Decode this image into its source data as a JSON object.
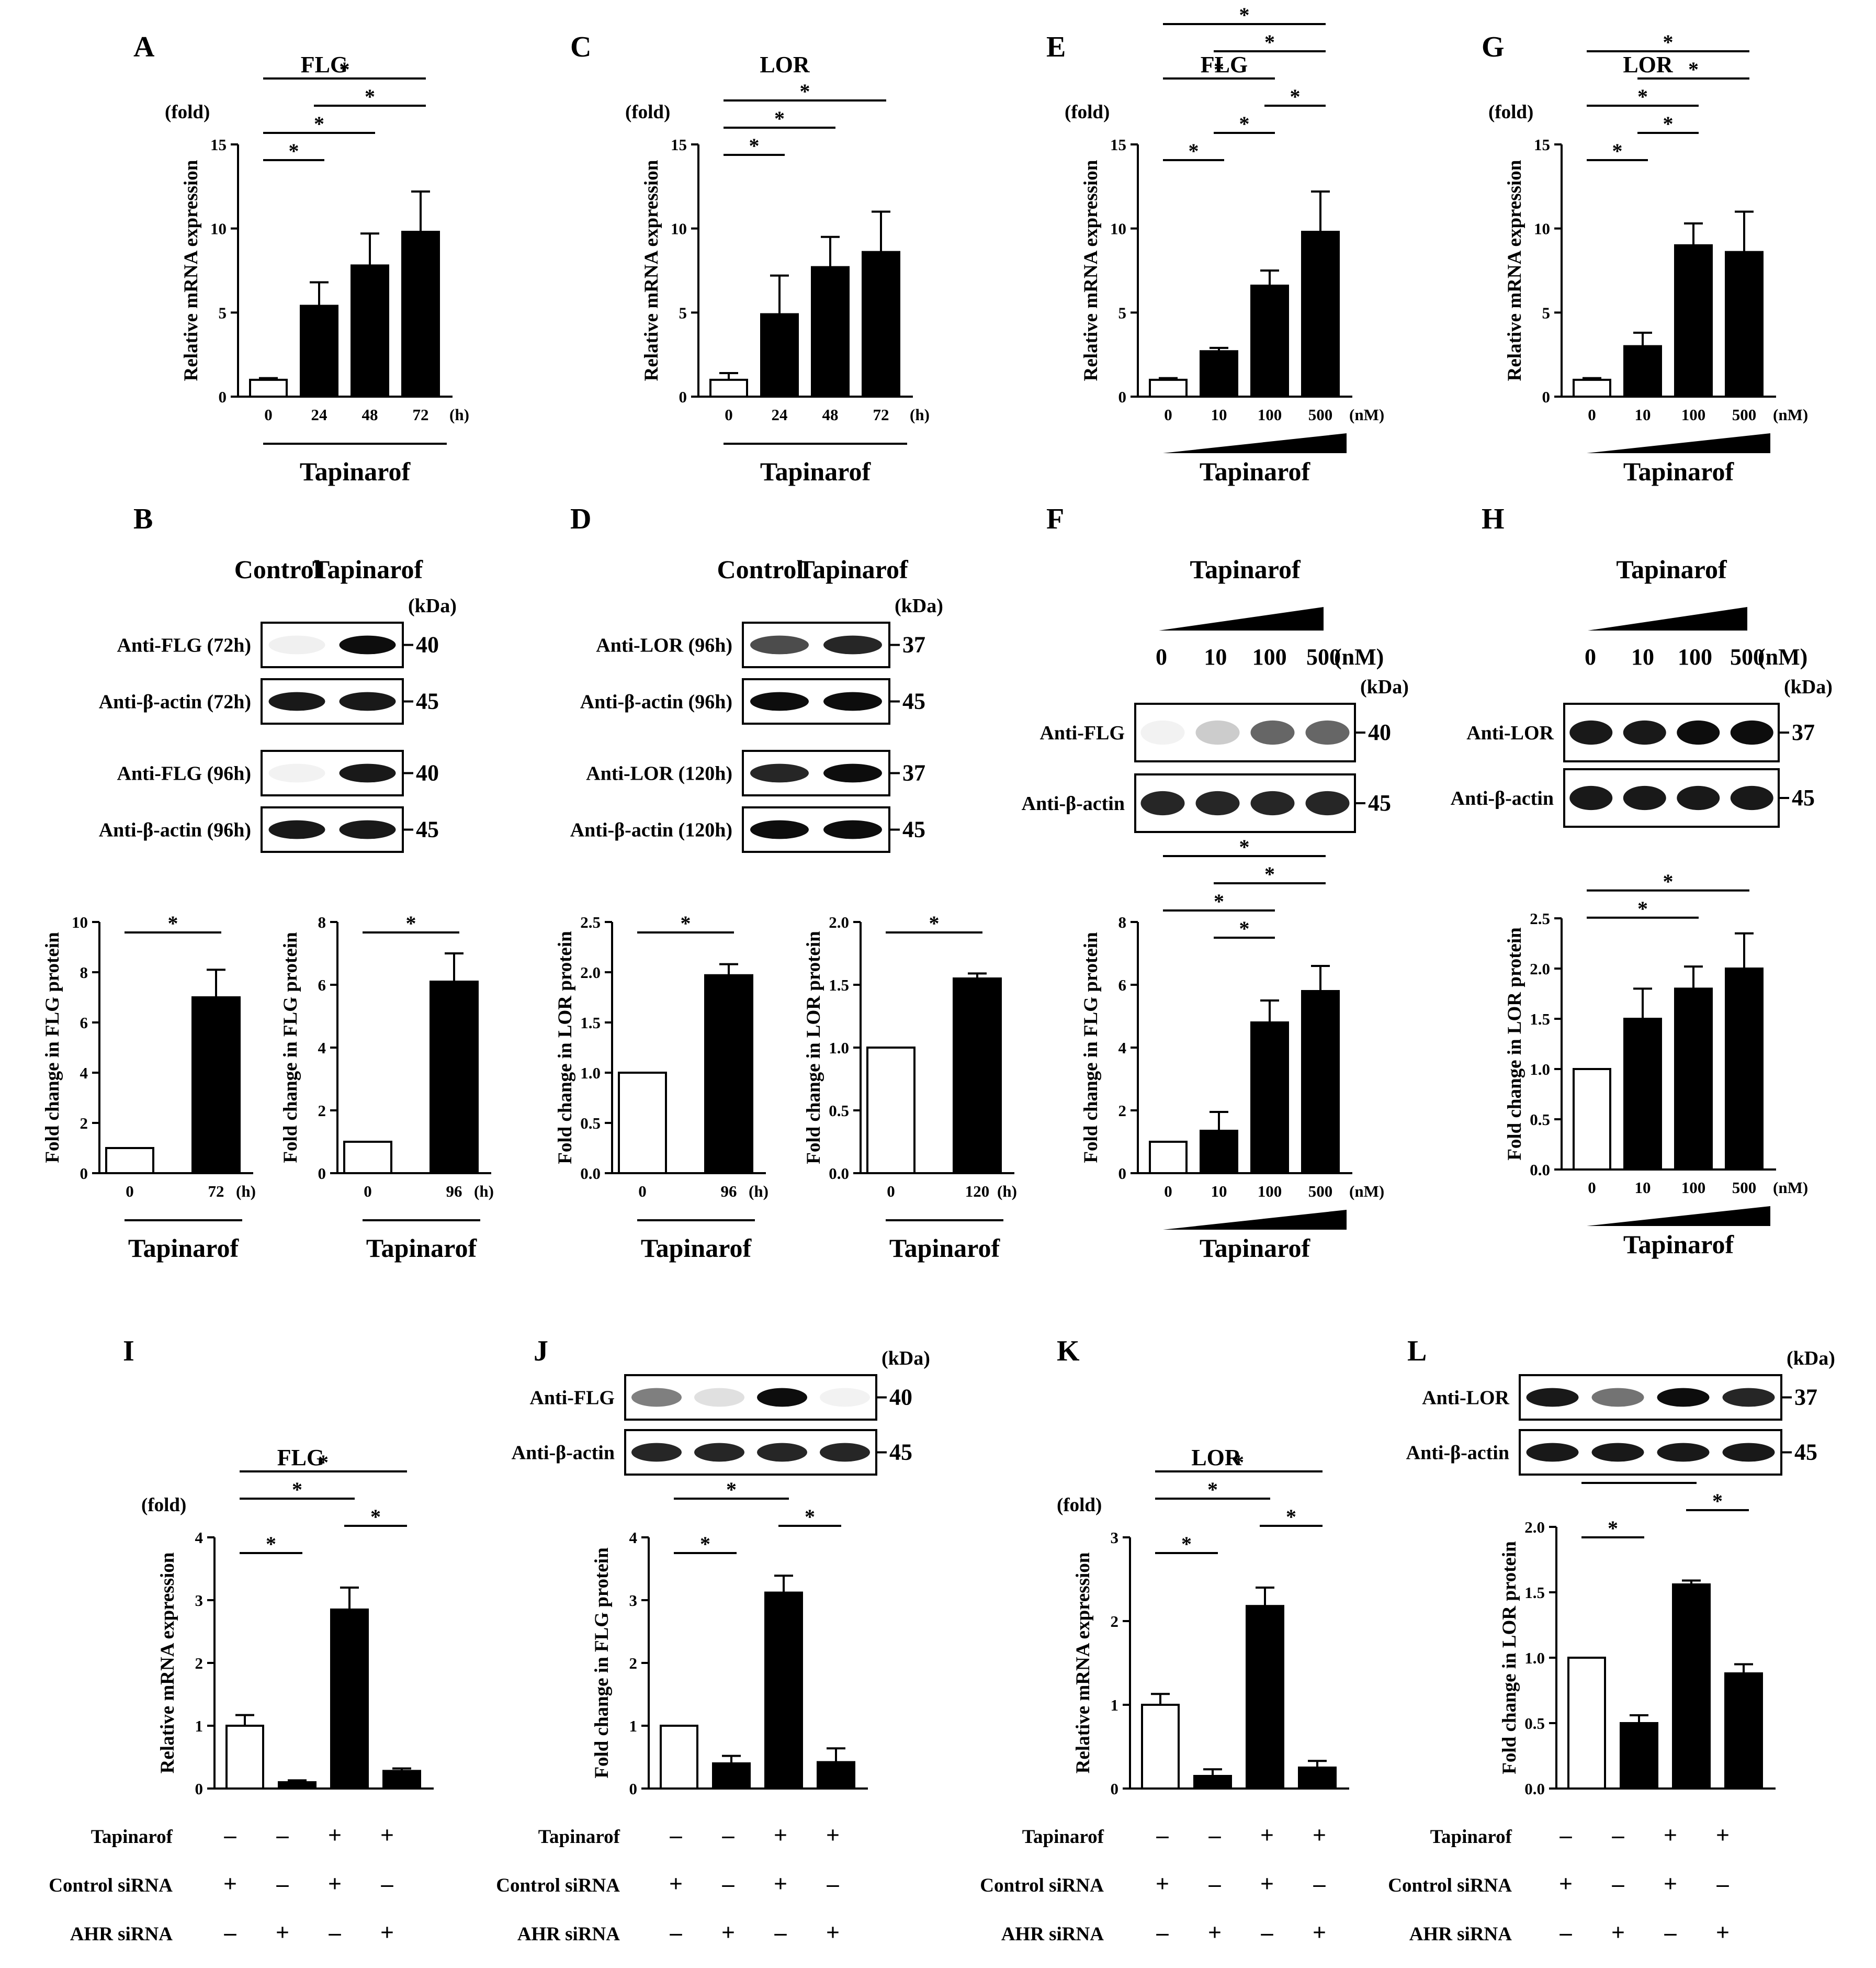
{
  "panels": [
    {
      "id": "A",
      "letter": "A",
      "title": "FLG",
      "ylabel": "Relative mRNA expression",
      "unit": "(fold)",
      "yticks": [
        "0",
        "5",
        "10",
        "15"
      ],
      "ymax": 15,
      "categories": [
        "0",
        "24",
        "48",
        "72"
      ],
      "xunit": "(h)",
      "xlabel": "Tapinarof",
      "dose_wedge": false,
      "values": [
        1.0,
        5.4,
        7.8,
        9.8
      ],
      "errors": [
        0.1,
        1.4,
        1.9,
        2.4
      ],
      "fills": [
        "open",
        "solid",
        "solid",
        "solid"
      ],
      "sig": [
        [
          0,
          1
        ],
        [
          0,
          2
        ],
        [
          0,
          3
        ],
        [
          1,
          3
        ]
      ]
    },
    {
      "id": "C",
      "letter": "C",
      "title": "LOR",
      "ylabel": "Relative mRNA expression",
      "unit": "(fold)",
      "yticks": [
        "0",
        "5",
        "10",
        "15"
      ],
      "ymax": 15,
      "categories": [
        "0",
        "24",
        "48",
        "72"
      ],
      "xunit": "(h)",
      "xlabel": "Tapinarof",
      "dose_wedge": false,
      "values": [
        1.0,
        4.9,
        7.7,
        8.6
      ],
      "errors": [
        0.4,
        2.3,
        1.8,
        2.4
      ],
      "fills": [
        "open",
        "solid",
        "solid",
        "solid"
      ],
      "sig": [
        [
          0,
          1
        ],
        [
          0,
          2
        ],
        [
          0,
          3
        ]
      ]
    },
    {
      "id": "E",
      "letter": "E",
      "title": "FLG",
      "ylabel": "Relative mRNA expression",
      "unit": "(fold)",
      "yticks": [
        "0",
        "5",
        "10",
        "15"
      ],
      "ymax": 15,
      "categories": [
        "0",
        "10",
        "100",
        "500"
      ],
      "xunit": "(nM)",
      "xlabel": "Tapinarof",
      "dose_wedge": true,
      "values": [
        1.0,
        2.7,
        6.6,
        9.8
      ],
      "errors": [
        0.1,
        0.2,
        0.9,
        2.4
      ],
      "fills": [
        "open",
        "solid",
        "solid",
        "solid"
      ],
      "sig": [
        [
          0,
          1
        ],
        [
          0,
          2
        ],
        [
          0,
          3
        ],
        [
          1,
          2
        ],
        [
          1,
          3
        ],
        [
          2,
          3
        ]
      ]
    },
    {
      "id": "G",
      "letter": "G",
      "title": "LOR",
      "ylabel": "Relative mRNA expression",
      "unit": "(fold)",
      "yticks": [
        "0",
        "5",
        "10",
        "15"
      ],
      "ymax": 15,
      "categories": [
        "0",
        "10",
        "100",
        "500"
      ],
      "xunit": "(nM)",
      "xlabel": "Tapinarof",
      "dose_wedge": true,
      "values": [
        1.0,
        3.0,
        9.0,
        8.6
      ],
      "errors": [
        0.1,
        0.8,
        1.3,
        2.4
      ],
      "fills": [
        "open",
        "solid",
        "solid",
        "solid"
      ],
      "sig": [
        [
          0,
          1
        ],
        [
          0,
          2
        ],
        [
          0,
          3
        ],
        [
          1,
          2
        ],
        [
          1,
          3
        ]
      ]
    },
    {
      "id": "B1",
      "letter": "",
      "title": "",
      "ylabel": "Fold change in FLG protein",
      "unit": "",
      "yticks": [
        "0",
        "2",
        "4",
        "6",
        "8",
        "10"
      ],
      "ymax": 10,
      "categories": [
        "0",
        "72"
      ],
      "xunit": "(h)",
      "xlabel": "Tapinarof",
      "dose_wedge": false,
      "values": [
        1.0,
        7.0
      ],
      "errors": [
        0,
        1.1
      ],
      "fills": [
        "open",
        "solid"
      ],
      "sig": [
        [
          0,
          1
        ]
      ]
    },
    {
      "id": "B2",
      "letter": "",
      "title": "",
      "ylabel": "Fold change in FLG protein",
      "unit": "",
      "yticks": [
        "0",
        "2",
        "4",
        "6",
        "8"
      ],
      "ymax": 8,
      "categories": [
        "0",
        "96"
      ],
      "xunit": "(h)",
      "xlabel": "Tapinarof",
      "dose_wedge": false,
      "values": [
        1.0,
        6.1
      ],
      "errors": [
        0,
        0.9
      ],
      "fills": [
        "open",
        "solid"
      ],
      "sig": [
        [
          0,
          1
        ]
      ]
    },
    {
      "id": "D1",
      "letter": "",
      "title": "",
      "ylabel": "Fold change in LOR protein",
      "unit": "",
      "yticks": [
        "0.0",
        "0.5",
        "1.0",
        "1.5",
        "2.0",
        "2.5"
      ],
      "ymax": 2.5,
      "categories": [
        "0",
        "96"
      ],
      "xunit": "(h)",
      "xlabel": "Tapinarof",
      "dose_wedge": false,
      "values": [
        1.0,
        1.97
      ],
      "errors": [
        0,
        0.11
      ],
      "fills": [
        "open",
        "solid"
      ],
      "sig": [
        [
          0,
          1
        ]
      ]
    },
    {
      "id": "D2",
      "letter": "",
      "title": "",
      "ylabel": "Fold change in LOR protein",
      "unit": "",
      "yticks": [
        "0.0",
        "0.5",
        "1.0",
        "1.5",
        "2.0"
      ],
      "ymax": 2.0,
      "categories": [
        "0",
        "120"
      ],
      "xunit": "(h)",
      "xlabel": "Tapinarof",
      "dose_wedge": false,
      "values": [
        1.0,
        1.55
      ],
      "errors": [
        0,
        0.04
      ],
      "fills": [
        "open",
        "solid"
      ],
      "sig": [
        [
          0,
          1
        ]
      ]
    },
    {
      "id": "F",
      "letter": "",
      "title": "",
      "ylabel": "Fold change in FLG protein",
      "unit": "",
      "yticks": [
        "0",
        "2",
        "4",
        "6",
        "8"
      ],
      "ymax": 8,
      "categories": [
        "0",
        "10",
        "100",
        "500"
      ],
      "xunit": "(nM)",
      "xlabel": "Tapinarof",
      "dose_wedge": true,
      "values": [
        1.0,
        1.35,
        4.8,
        5.8
      ],
      "errors": [
        0,
        0.6,
        0.7,
        0.8
      ],
      "fills": [
        "open",
        "solid",
        "solid",
        "solid"
      ],
      "sig": [
        [
          0,
          2
        ],
        [
          0,
          3
        ],
        [
          1,
          2
        ],
        [
          1,
          3
        ]
      ]
    },
    {
      "id": "H",
      "letter": "",
      "title": "",
      "ylabel": "Fold change in LOR protein",
      "unit": "",
      "yticks": [
        "0.0",
        "0.5",
        "1.0",
        "1.5",
        "2.0",
        "2.5"
      ],
      "ymax": 2.5,
      "categories": [
        "0",
        "10",
        "100",
        "500"
      ],
      "xunit": "(nM)",
      "xlabel": "Tapinarof",
      "dose_wedge": true,
      "values": [
        1.0,
        1.5,
        1.8,
        2.0
      ],
      "errors": [
        0,
        0.3,
        0.22,
        0.35
      ],
      "fills": [
        "open",
        "solid",
        "solid",
        "solid"
      ],
      "sig": [
        [
          0,
          2
        ],
        [
          0,
          3
        ]
      ]
    },
    {
      "id": "I",
      "letter": "I",
      "title": "FLG",
      "ylabel": "Relative mRNA expression",
      "unit": "(fold)",
      "yticks": [
        "0",
        "1",
        "2",
        "3",
        "4"
      ],
      "ymax": 4,
      "values": [
        1.0,
        0.1,
        2.85,
        0.28
      ],
      "errors": [
        0.17,
        0.03,
        0.35,
        0.04
      ],
      "fills": [
        "open",
        "solid",
        "solid",
        "solid"
      ],
      "sig": [
        [
          0,
          1
        ],
        [
          0,
          2
        ],
        [
          0,
          3
        ],
        [
          2,
          3
        ]
      ]
    },
    {
      "id": "J",
      "letter": "",
      "title": "",
      "ylabel": "Fold change in FLG protein",
      "unit": "",
      "yticks": [
        "0",
        "1",
        "2",
        "3",
        "4"
      ],
      "ymax": 4,
      "values": [
        1.0,
        0.4,
        3.12,
        0.42
      ],
      "errors": [
        0,
        0.12,
        0.27,
        0.22
      ],
      "fills": [
        "open",
        "solid",
        "solid",
        "solid"
      ],
      "sig": [
        [
          0,
          1
        ],
        [
          0,
          2
        ],
        [
          0,
          3
        ],
        [
          2,
          3
        ]
      ]
    },
    {
      "id": "K",
      "letter": "K",
      "title": "LOR",
      "ylabel": "Relative mRNA expression",
      "unit": "(fold)",
      "yticks": [
        "0",
        "1",
        "2",
        "3"
      ],
      "ymax": 3,
      "values": [
        1.0,
        0.15,
        2.18,
        0.25
      ],
      "errors": [
        0.13,
        0.08,
        0.22,
        0.08
      ],
      "fills": [
        "open",
        "solid",
        "solid",
        "solid"
      ],
      "sig": [
        [
          0,
          1
        ],
        [
          0,
          2
        ],
        [
          0,
          3
        ],
        [
          2,
          3
        ]
      ]
    },
    {
      "id": "L",
      "letter": "",
      "title": "",
      "ylabel": "Fold change in LOR protein",
      "unit": "",
      "yticks": [
        "0.0",
        "0.5",
        "1.0",
        "1.5",
        "2.0"
      ],
      "ymax": 2.0,
      "values": [
        1.0,
        0.5,
        1.56,
        0.88
      ],
      "errors": [
        0,
        0.06,
        0.03,
        0.07
      ],
      "fills": [
        "open",
        "solid",
        "solid",
        "solid"
      ],
      "sig": [
        [
          0,
          1
        ],
        [
          0,
          2
        ],
        [
          2,
          3
        ]
      ]
    }
  ],
  "siRNA_table": {
    "rows": [
      {
        "label": "Tapinarof",
        "signs": [
          "–",
          "–",
          "+",
          "+"
        ]
      },
      {
        "label": "Control siRNA",
        "signs": [
          "+",
          "–",
          "+",
          "–"
        ]
      },
      {
        "label": "AHR siRNA",
        "signs": [
          "–",
          "+",
          "–",
          "+"
        ]
      }
    ]
  },
  "blots": {
    "B": {
      "letter": "B",
      "headers": [
        "Control",
        "Tapinarof"
      ],
      "kda": "(kDa)",
      "rows": [
        {
          "label": "Anti-FLG (72h)",
          "mw": "40"
        },
        {
          "label": "Anti-β-actin (72h)",
          "mw": "45"
        },
        {
          "label": "Anti-FLG (96h)",
          "mw": "40"
        },
        {
          "label": "Anti-β-actin (96h)",
          "mw": "45"
        }
      ]
    },
    "D": {
      "letter": "D",
      "headers": [
        "Control",
        "Tapinarof"
      ],
      "kda": "(kDa)",
      "rows": [
        {
          "label": "Anti-LOR (96h)",
          "mw": "37"
        },
        {
          "label": "Anti-β-actin (96h)",
          "mw": "45"
        },
        {
          "label": "Anti-LOR (120h)",
          "mw": "37"
        },
        {
          "label": "Anti-β-actin (120h)",
          "mw": "45"
        }
      ]
    },
    "F": {
      "letter": "F",
      "title": "Tapinarof",
      "doses": [
        "0",
        "10",
        "100",
        "500"
      ],
      "dose_unit": "(nM)",
      "kda": "(kDa)",
      "rows": [
        {
          "label": "Anti-FLG",
          "mw": "40"
        },
        {
          "label": "Anti-β-actin",
          "mw": "45"
        }
      ]
    },
    "H": {
      "letter": "H",
      "title": "Tapinarof",
      "doses": [
        "0",
        "10",
        "100",
        "500"
      ],
      "dose_unit": "(nM)",
      "kda": "(kDa)",
      "rows": [
        {
          "label": "Anti-LOR",
          "mw": "37"
        },
        {
          "label": "Anti-β-actin",
          "mw": "45"
        }
      ]
    },
    "J": {
      "letter": "J",
      "kda": "(kDa)",
      "rows": [
        {
          "label": "Anti-FLG",
          "mw": "40"
        },
        {
          "label": "Anti-β-actin",
          "mw": "45"
        }
      ]
    },
    "L": {
      "letter": "L",
      "kda": "(kDa)",
      "rows": [
        {
          "label": "Anti-LOR",
          "mw": "37"
        },
        {
          "label": "Anti-β-actin",
          "mw": "45"
        }
      ]
    }
  },
  "sig_marker": "*",
  "chart_data": [
    {
      "type": "bar",
      "panel": "A",
      "title": "FLG",
      "ylabel": "Relative mRNA expression",
      "ylim": [
        0,
        15
      ],
      "categories": [
        "0",
        "24",
        "48",
        "72"
      ],
      "values": [
        1.0,
        5.4,
        7.8,
        9.8
      ]
    },
    {
      "type": "bar",
      "panel": "C",
      "title": "LOR",
      "ylabel": "Relative mRNA expression",
      "ylim": [
        0,
        15
      ],
      "categories": [
        "0",
        "24",
        "48",
        "72"
      ],
      "values": [
        1.0,
        4.9,
        7.7,
        8.6
      ]
    },
    {
      "type": "bar",
      "panel": "E",
      "title": "FLG",
      "ylabel": "Relative mRNA expression",
      "ylim": [
        0,
        15
      ],
      "categories": [
        "0",
        "10",
        "100",
        "500"
      ],
      "values": [
        1.0,
        2.7,
        6.6,
        9.8
      ]
    },
    {
      "type": "bar",
      "panel": "G",
      "title": "LOR",
      "ylabel": "Relative mRNA expression",
      "ylim": [
        0,
        15
      ],
      "categories": [
        "0",
        "10",
        "100",
        "500"
      ],
      "values": [
        1.0,
        3.0,
        9.0,
        8.6
      ]
    },
    {
      "type": "bar",
      "panel": "B",
      "ylabel": "Fold change in FLG protein",
      "ylim": [
        0,
        10
      ],
      "categories": [
        "0",
        "72"
      ],
      "values": [
        1.0,
        7.0
      ]
    },
    {
      "type": "bar",
      "panel": "B",
      "ylabel": "Fold change in FLG protein",
      "ylim": [
        0,
        8
      ],
      "categories": [
        "0",
        "96"
      ],
      "values": [
        1.0,
        6.1
      ]
    },
    {
      "type": "bar",
      "panel": "D",
      "ylabel": "Fold change in LOR protein",
      "ylim": [
        0,
        2.5
      ],
      "categories": [
        "0",
        "96"
      ],
      "values": [
        1.0,
        1.97
      ]
    },
    {
      "type": "bar",
      "panel": "D",
      "ylabel": "Fold change in LOR protein",
      "ylim": [
        0,
        2.0
      ],
      "categories": [
        "0",
        "120"
      ],
      "values": [
        1.0,
        1.55
      ]
    },
    {
      "type": "bar",
      "panel": "F",
      "ylabel": "Fold change in FLG protein",
      "ylim": [
        0,
        8
      ],
      "categories": [
        "0",
        "10",
        "100",
        "500"
      ],
      "values": [
        1.0,
        1.35,
        4.8,
        5.8
      ]
    },
    {
      "type": "bar",
      "panel": "H",
      "ylabel": "Fold change in LOR protein",
      "ylim": [
        0,
        2.5
      ],
      "categories": [
        "0",
        "10",
        "100",
        "500"
      ],
      "values": [
        1.0,
        1.5,
        1.8,
        2.0
      ]
    },
    {
      "type": "bar",
      "panel": "I",
      "title": "FLG",
      "ylabel": "Relative mRNA expression",
      "ylim": [
        0,
        4
      ],
      "values": [
        1.0,
        0.1,
        2.85,
        0.28
      ]
    },
    {
      "type": "bar",
      "panel": "J",
      "ylabel": "Fold change in FLG protein",
      "ylim": [
        0,
        4
      ],
      "values": [
        1.0,
        0.4,
        3.12,
        0.42
      ]
    },
    {
      "type": "bar",
      "panel": "K",
      "title": "LOR",
      "ylabel": "Relative mRNA expression",
      "ylim": [
        0,
        3
      ],
      "values": [
        1.0,
        0.15,
        2.18,
        0.25
      ]
    },
    {
      "type": "bar",
      "panel": "L",
      "ylabel": "Fold change in LOR protein",
      "ylim": [
        0,
        2.0
      ],
      "values": [
        1.0,
        0.5,
        1.56,
        0.88
      ]
    }
  ]
}
